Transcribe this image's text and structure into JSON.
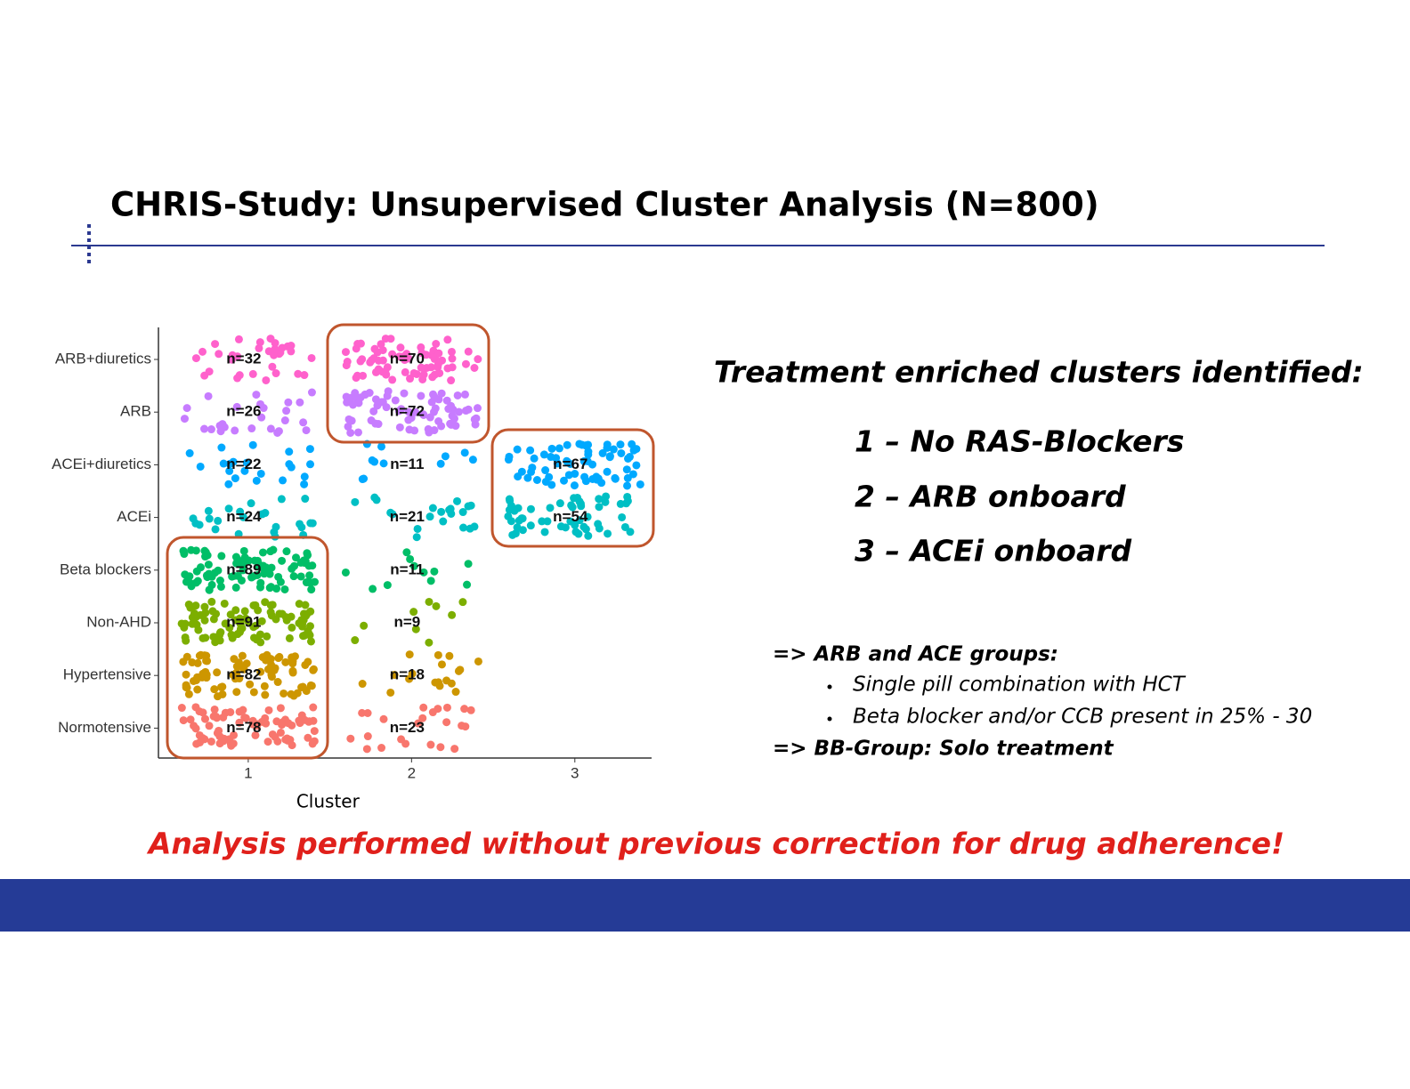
{
  "slide": {
    "title": "CHRIS-Study: Unsupervised Cluster Analysis (N=800)",
    "heading": "Treatment enriched clusters identified:",
    "items": [
      "1 – No RAS-Blockers",
      "2 – ARB onboard",
      "3 – ACEi onboard"
    ],
    "notes": {
      "first": "=> ARB and ACE groups:",
      "bullets": [
        "Single pill combination with HCT",
        "Beta blocker and/or CCB present in 25% - 30"
      ],
      "last": "=> BB-Group: Solo treatment"
    },
    "footer": "Analysis performed without previous correction for drug adherence!"
  },
  "chart_data": {
    "type": "jitter",
    "xlabel": "Cluster",
    "xlim": [
      0.45,
      3.47
    ],
    "xticks": [
      1,
      2,
      3
    ],
    "series": [
      {
        "name": "ARB+diuretics",
        "color": "#FF61CC",
        "values": [
          32,
          70,
          null
        ],
        "value_labels": [
          "n=32",
          "n=70",
          null
        ]
      },
      {
        "name": "ARB",
        "color": "#C77CFF",
        "values": [
          26,
          72,
          null
        ],
        "value_labels": [
          "n=26",
          "n=72",
          null
        ]
      },
      {
        "name": "ACEi+diuretics",
        "color": "#00A9FF",
        "values": [
          22,
          11,
          67
        ],
        "value_labels": [
          "n=22",
          "n=11",
          "n=67"
        ]
      },
      {
        "name": "ACEi",
        "color": "#00BFC4",
        "values": [
          24,
          21,
          54
        ],
        "value_labels": [
          "n=24",
          "n=21",
          "n=54"
        ]
      },
      {
        "name": "Beta blockers",
        "color": "#00BE67",
        "values": [
          89,
          11,
          null
        ],
        "value_labels": [
          "n=89",
          "n=11",
          null
        ]
      },
      {
        "name": "Non-AHD",
        "color": "#7CAE00",
        "values": [
          91,
          9,
          null
        ],
        "value_labels": [
          "n=91",
          "n=9",
          null
        ]
      },
      {
        "name": "Hypertensive",
        "color": "#CD9600",
        "values": [
          82,
          18,
          null
        ],
        "value_labels": [
          "n=82",
          "n=18",
          null
        ]
      },
      {
        "name": "Normotensive",
        "color": "#F8766D",
        "values": [
          78,
          23,
          null
        ],
        "value_labels": [
          "n=78",
          "n=23",
          null
        ]
      }
    ]
  }
}
